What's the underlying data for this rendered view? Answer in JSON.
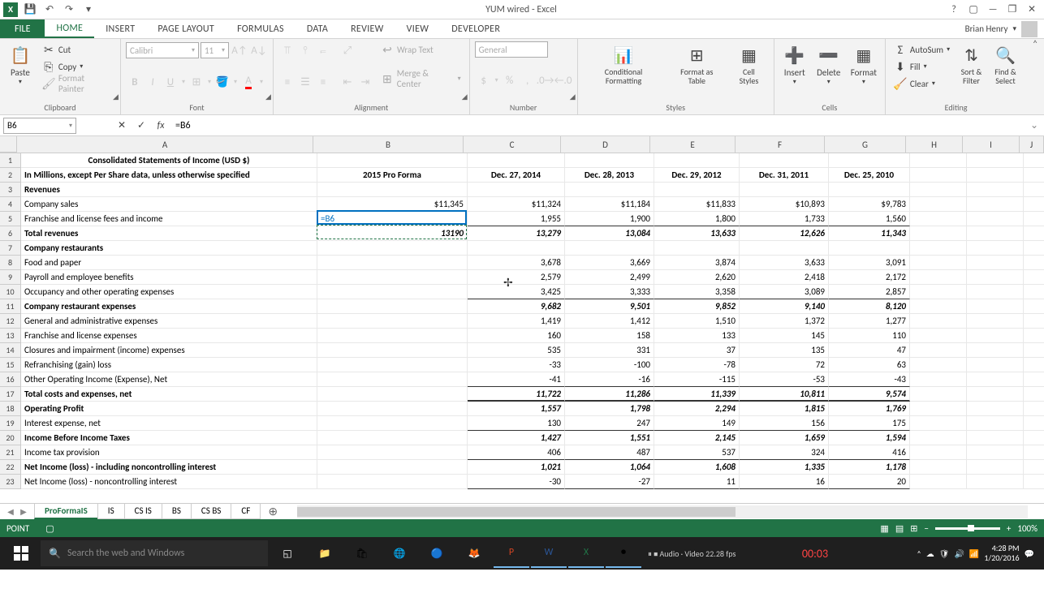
{
  "titlebar": {
    "doc_title": "YUM wired - Excel"
  },
  "ribbon": {
    "file_label": "FILE",
    "tabs": [
      "HOME",
      "INSERT",
      "PAGE LAYOUT",
      "FORMULAS",
      "DATA",
      "REVIEW",
      "VIEW",
      "DEVELOPER"
    ],
    "active_tab": "HOME",
    "user": "Brian Henry",
    "clipboard": {
      "paste": "Paste",
      "cut": "Cut",
      "copy": "Copy",
      "painter": "Format Painter",
      "label": "Clipboard"
    },
    "font": {
      "name": "Calibri",
      "size": "11",
      "label": "Font"
    },
    "alignment": {
      "wrap": "Wrap Text",
      "merge": "Merge & Center",
      "label": "Alignment"
    },
    "number": {
      "format": "General",
      "label": "Number"
    },
    "styles": {
      "cond": "Conditional Formatting",
      "table": "Format as Table",
      "cell": "Cell Styles",
      "label": "Styles"
    },
    "cells": {
      "insert": "Insert",
      "delete": "Delete",
      "format": "Format",
      "label": "Cells"
    },
    "editing": {
      "autosum": "AutoSum",
      "fill": "Fill",
      "clear": "Clear",
      "sort": "Sort & Filter",
      "find": "Find & Select",
      "label": "Editing"
    }
  },
  "formula_bar": {
    "name_box": "B6",
    "formula": "=B6"
  },
  "sheet": {
    "col_widths": {
      "A": 365,
      "B": 185,
      "C": 120,
      "D": 110,
      "E": 105,
      "F": 110,
      "G": 100,
      "H": 70,
      "I": 70,
      "J": 30
    },
    "columns": [
      "A",
      "B",
      "C",
      "D",
      "E",
      "F",
      "G",
      "H",
      "I",
      "J"
    ],
    "headers_row1": {
      "A": "Consolidated Statements of Income (USD $)"
    },
    "headers_row2": {
      "A": "In Millions, except Per Share data, unless otherwise specified",
      "B": "2015 Pro Forma",
      "C": "Dec. 27, 2014",
      "D": "Dec. 28, 2013",
      "E": "Dec. 29, 2012",
      "F": "Dec. 31, 2011",
      "G": "Dec. 25, 2010"
    },
    "rows": [
      {
        "n": 3,
        "A": "Revenues",
        "bold": true
      },
      {
        "n": 4,
        "A": "Company sales",
        "B": "$11,345",
        "C": "$11,324",
        "D": "$11,184",
        "E": "$11,833",
        "F": "$10,893",
        "G": "$9,783"
      },
      {
        "n": 5,
        "A": "Franchise and license fees and income",
        "B_edit": "=B6",
        "C": "1,955",
        "D": "1,900",
        "E": "1,800",
        "F": "1,733",
        "G": "1,560",
        "underline": true
      },
      {
        "n": 6,
        "A": "Total revenues",
        "B": "13190",
        "C": "13,279",
        "D": "13,084",
        "E": "13,633",
        "F": "12,626",
        "G": "11,343",
        "bold": true,
        "italic": true,
        "marching": true
      },
      {
        "n": 7,
        "A": "Company restaurants",
        "bold": true
      },
      {
        "n": 8,
        "A": "Food and paper",
        "C": "3,678",
        "D": "3,669",
        "E": "3,874",
        "F": "3,633",
        "G": "3,091"
      },
      {
        "n": 9,
        "A": "Payroll and employee benefits",
        "C": "2,579",
        "D": "2,499",
        "E": "2,620",
        "F": "2,418",
        "G": "2,172"
      },
      {
        "n": 10,
        "A": "Occupancy and other operating expenses",
        "C": "3,425",
        "D": "3,333",
        "E": "3,358",
        "F": "3,089",
        "G": "2,857",
        "underline": true
      },
      {
        "n": 11,
        "A": "Company restaurant expenses",
        "C": "9,682",
        "D": "9,501",
        "E": "9,852",
        "F": "9,140",
        "G": "8,120",
        "bold": true,
        "italic": true
      },
      {
        "n": 12,
        "A": "General and administrative expenses",
        "C": "1,419",
        "D": "1,412",
        "E": "1,510",
        "F": "1,372",
        "G": "1,277"
      },
      {
        "n": 13,
        "A": "Franchise and license expenses",
        "C": "160",
        "D": "158",
        "E": "133",
        "F": "145",
        "G": "110"
      },
      {
        "n": 14,
        "A": "Closures and impairment (income) expenses",
        "C": "535",
        "D": "331",
        "E": "37",
        "F": "135",
        "G": "47"
      },
      {
        "n": 15,
        "A": "Refranchising (gain) loss",
        "C": "-33",
        "D": "-100",
        "E": "-78",
        "F": "72",
        "G": "63"
      },
      {
        "n": 16,
        "A": "Other Operating Income (Expense), Net",
        "C": "-41",
        "D": "-16",
        "E": "-115",
        "F": "-53",
        "G": "-43",
        "underline": true
      },
      {
        "n": 17,
        "A": "Total costs and expenses, net",
        "C": "11,722",
        "D": "11,286",
        "E": "11,339",
        "F": "10,811",
        "G": "9,574",
        "bold": true,
        "italic": true,
        "dunder": true
      },
      {
        "n": 18,
        "A": "Operating Profit",
        "C": "1,557",
        "D": "1,798",
        "E": "2,294",
        "F": "1,815",
        "G": "1,769",
        "bold": true,
        "italic": true
      },
      {
        "n": 19,
        "A": "Interest expense, net",
        "C": "130",
        "D": "247",
        "E": "149",
        "F": "156",
        "G": "175",
        "underline": true
      },
      {
        "n": 20,
        "A": "Income Before Income Taxes",
        "C": "1,427",
        "D": "1,551",
        "E": "2,145",
        "F": "1,659",
        "G": "1,594",
        "bold": true,
        "italic": true
      },
      {
        "n": 21,
        "A": "Income tax provision",
        "C": "406",
        "D": "487",
        "E": "537",
        "F": "324",
        "G": "416",
        "underline": true
      },
      {
        "n": 22,
        "A": "Net Income (loss) - including noncontrolling interest",
        "C": "1,021",
        "D": "1,064",
        "E": "1,608",
        "F": "1,335",
        "G": "1,178",
        "bold": true,
        "italic": true
      },
      {
        "n": 23,
        "A": "Net Income (loss) - noncontrolling interest",
        "C": "-30",
        "D": "-27",
        "E": "11",
        "F": "16",
        "G": "20",
        "underline": true
      }
    ],
    "tabs": [
      "ProFormaIS",
      "IS",
      "CS IS",
      "BS",
      "CS BS",
      "CF"
    ],
    "active_tab": "ProFormaIS"
  },
  "statusbar": {
    "mode": "POINT",
    "zoom": "100%"
  },
  "taskbar": {
    "search_placeholder": "Search the web and Windows",
    "rec_time": "00:03",
    "time": "4:28 PM",
    "date": "1/20/2016"
  }
}
